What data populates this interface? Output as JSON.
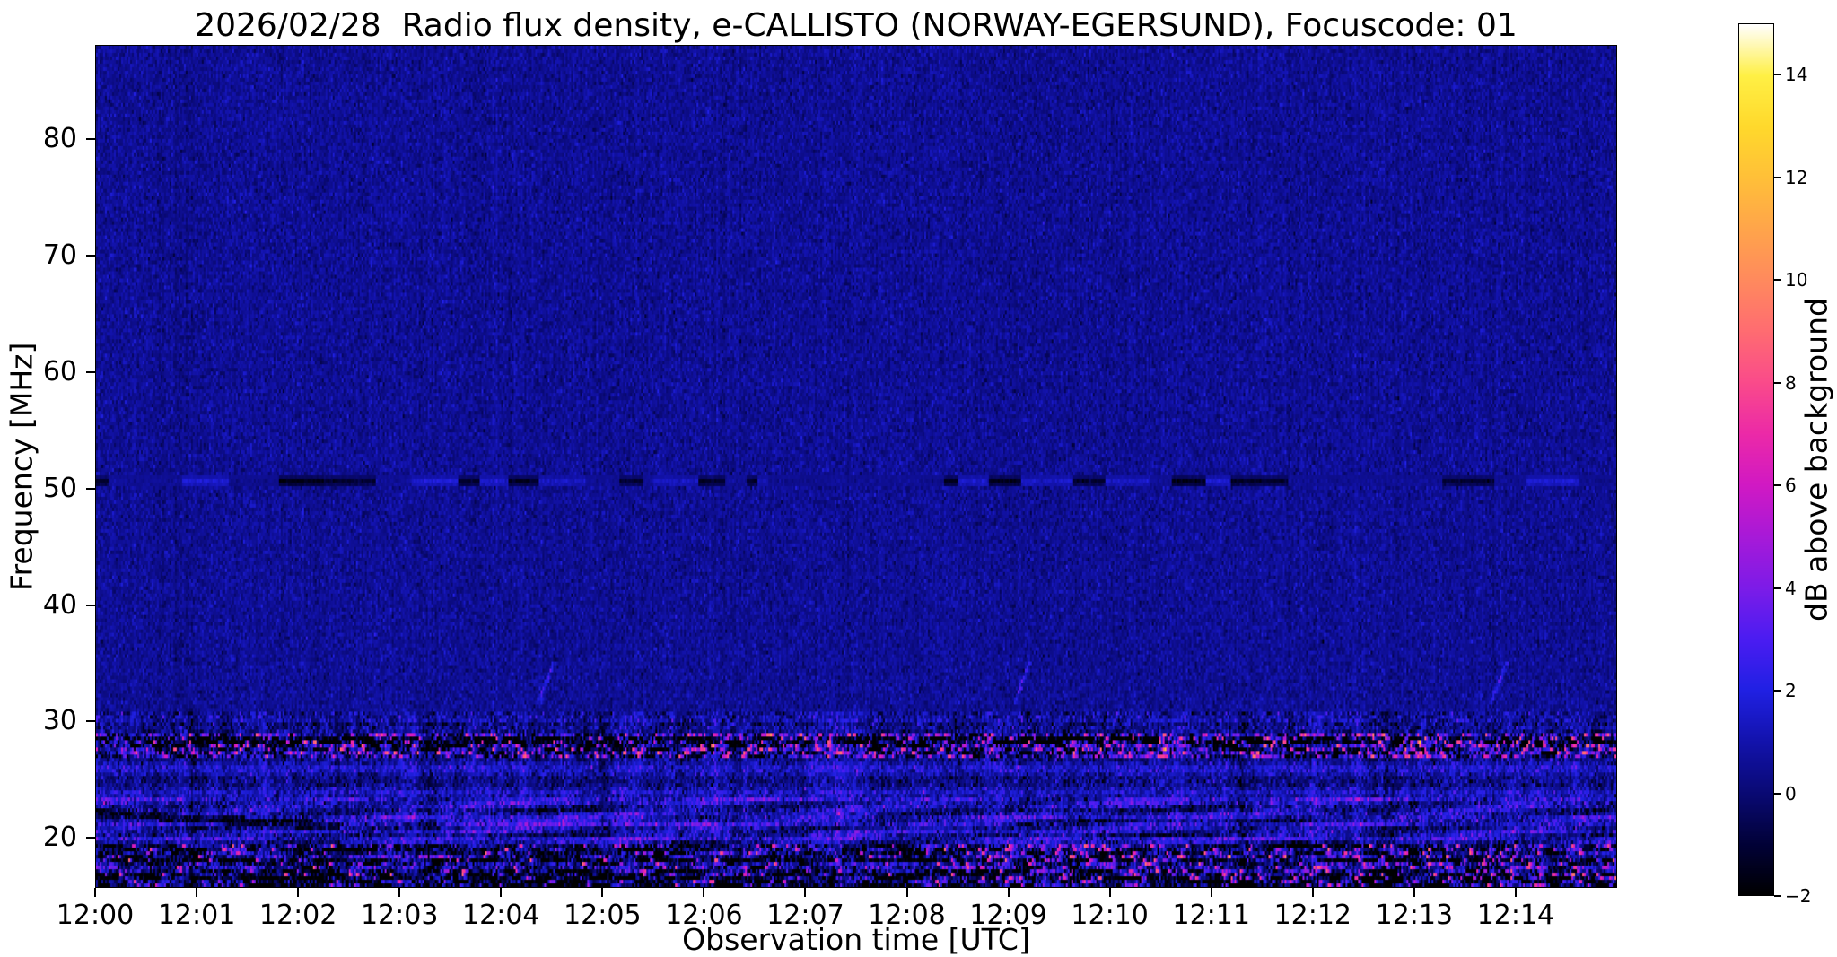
{
  "chart_data": {
    "type": "heatmap",
    "title": "2026/02/28  Radio flux density, e-CALLISTO (NORWAY-EGERSUND), Focuscode: 01",
    "xlabel": "Observation time [UTC]",
    "ylabel": "Frequency [MHz]",
    "x_ticks": [
      "12:00",
      "12:01",
      "12:02",
      "12:03",
      "12:04",
      "12:05",
      "12:06",
      "12:07",
      "12:08",
      "12:09",
      "12:10",
      "12:11",
      "12:12",
      "12:13",
      "12:14"
    ],
    "x_span_minutes": 15,
    "y_ticks": [
      20,
      30,
      40,
      50,
      60,
      70,
      80
    ],
    "y_range_mhz": [
      15.7,
      88.1
    ],
    "grid": false,
    "legend": "none",
    "colorbar": {
      "label": "dB above background",
      "ticks": [
        -2,
        0,
        2,
        4,
        6,
        8,
        10,
        12,
        14
      ],
      "vmin": -2,
      "vmax": 15,
      "colormap_stops": [
        {
          "value": -2,
          "color": "#000002"
        },
        {
          "value": -1,
          "color": "#020239"
        },
        {
          "value": 0,
          "color": "#0a0a75"
        },
        {
          "value": 1,
          "color": "#1313ad"
        },
        {
          "value": 2,
          "color": "#2121e4"
        },
        {
          "value": 3,
          "color": "#4c1cf2"
        },
        {
          "value": 4,
          "color": "#7d1ce8"
        },
        {
          "value": 5,
          "color": "#a81ad8"
        },
        {
          "value": 6,
          "color": "#d119c4"
        },
        {
          "value": 7,
          "color": "#ec2aa8"
        },
        {
          "value": 8,
          "color": "#fa4b8b"
        },
        {
          "value": 9,
          "color": "#ff6c72"
        },
        {
          "value": 10,
          "color": "#ff8a5e"
        },
        {
          "value": 11,
          "color": "#ffa54b"
        },
        {
          "value": 12,
          "color": "#ffc039"
        },
        {
          "value": 13,
          "color": "#ffd92c"
        },
        {
          "value": 14,
          "color": "#fff045"
        },
        {
          "value": 15,
          "color": "#ffffff"
        }
      ]
    },
    "features": [
      {
        "name": "background",
        "type": "noise",
        "mean_db": 0.55,
        "sigma_db": 0.42,
        "description": "uniform dark-blue noise floor over most of the band"
      },
      {
        "name": "calibration-line-50mhz",
        "type": "hline",
        "freq_mhz": 50.6,
        "half_width_mhz": 0.45,
        "description": "narrow horizontal interference line across all times, alternating faint-bright and dark segments, darker after 12:11"
      },
      {
        "name": "rfi-band-29-31",
        "type": "band",
        "freq_range_mhz": [
          28.9,
          30.8
        ],
        "mean_db": 0.1,
        "sigma_db": 0.9,
        "stripe_db": 0.5
      },
      {
        "name": "rfi-band-27-29",
        "type": "band",
        "freq_range_mhz": [
          26.7,
          28.9
        ],
        "mean_db": -0.6,
        "sigma_db": 1.9,
        "stripe_db": 0.7,
        "burst_prob": 0.05,
        "burst_db": [
          3.5,
          9
        ],
        "description": "strong intermittent RFI: black blocks with bright magenta/pink bursts"
      },
      {
        "name": "rfi-band-23-27",
        "type": "band",
        "freq_range_mhz": [
          23.2,
          26.7
        ],
        "mean_db": 0.9,
        "sigma_db": 0.8,
        "stripe_db": 0.6
      },
      {
        "name": "rfi-band-19-23",
        "type": "band",
        "freq_range_mhz": [
          19.2,
          23.2
        ],
        "mean_db": 1.25,
        "sigma_db": 1.0,
        "stripe_db": 0.5,
        "wavy": true,
        "description": "wavy bright-blue shortwave structures"
      },
      {
        "name": "band-bottom",
        "type": "band",
        "freq_range_mhz": [
          15.7,
          19.2
        ],
        "mean_db": -0.4,
        "sigma_db": 1.5,
        "stripe_db": 0.6,
        "burst_prob": 0.035,
        "burst_db": [
          3,
          9
        ],
        "description": "dark band with bright blue and magenta bursts, strongest 12:09-12:13"
      },
      {
        "name": "dark-drift",
        "type": "drift",
        "time_range_min": [
          0,
          2.4
        ],
        "freq_start_mhz": 21.9,
        "freq_end_mhz": 20.8,
        "half_width_mhz": 0.35,
        "delta_db": -2.2
      },
      {
        "name": "bright-line-21mhz",
        "type": "segment",
        "time_range_min": [
          3.35,
          6.05
        ],
        "freq_range_mhz": [
          20.75,
          21.35
        ],
        "delta_db": 1.7
      },
      {
        "name": "ionosonde-wisps",
        "type": "wisp",
        "times_min": [
          4.35,
          9.05,
          13.75
        ],
        "freq_mhz": 33.0,
        "delta_db": 1.3
      }
    ]
  }
}
